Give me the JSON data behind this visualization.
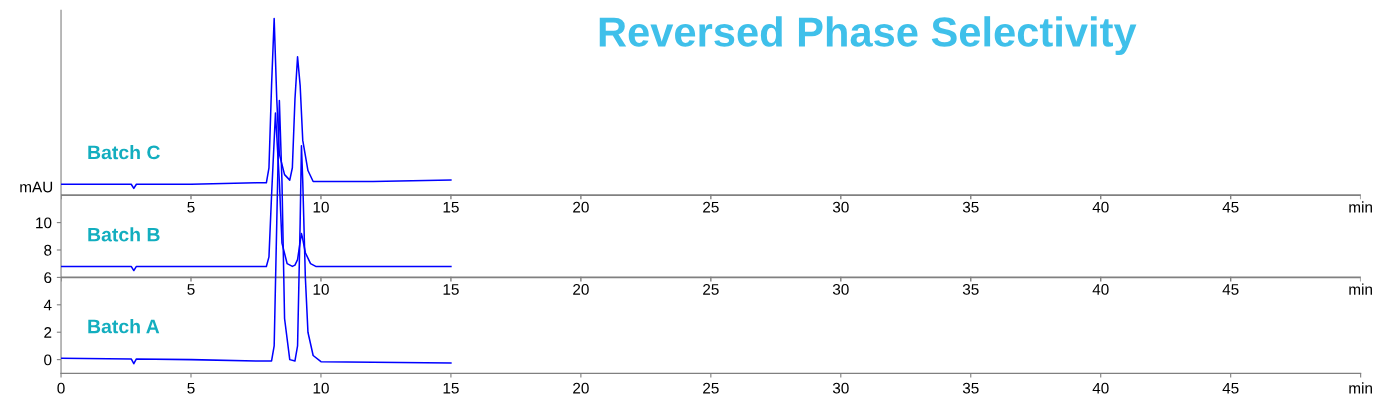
{
  "chart_data": {
    "type": "line",
    "title": "Reversed Phase Selectivity",
    "ylabel": "mAU",
    "xlim": [
      0,
      50
    ],
    "xticks": [
      0,
      5,
      10,
      15,
      20,
      25,
      30,
      35,
      40,
      45,
      {
        "value": 50,
        "label": "min"
      }
    ],
    "ylim": [
      -1,
      25.5
    ],
    "yticks": [
      0,
      2,
      4,
      6,
      8,
      10
    ],
    "grid": false,
    "legend": false,
    "marker": "none",
    "line_style": "solid",
    "annotations": [
      {
        "text": "5",
        "x": 5,
        "y": 12
      },
      {
        "text": "10",
        "x": 10,
        "y": 12
      },
      {
        "text": "15",
        "x": 15,
        "y": 12
      },
      {
        "text": "20",
        "x": 20,
        "y": 12
      },
      {
        "text": "25",
        "x": 25,
        "y": 12
      },
      {
        "text": "30",
        "x": 30,
        "y": 12
      },
      {
        "text": "35",
        "x": 35,
        "y": 12
      },
      {
        "text": "40",
        "x": 40,
        "y": 12
      },
      {
        "text": "45",
        "x": 45,
        "y": 12
      },
      {
        "text": "min",
        "x": 50,
        "y": 12
      },
      {
        "text": "5",
        "x": 5,
        "y": 6
      },
      {
        "text": "10",
        "x": 10,
        "y": 6
      },
      {
        "text": "15",
        "x": 15,
        "y": 6
      },
      {
        "text": "20",
        "x": 20,
        "y": 6
      },
      {
        "text": "25",
        "x": 25,
        "y": 6
      },
      {
        "text": "30",
        "x": 30,
        "y": 6
      },
      {
        "text": "35",
        "x": 35,
        "y": 6
      },
      {
        "text": "40",
        "x": 40,
        "y": 6
      },
      {
        "text": "45",
        "x": 45,
        "y": 6
      },
      {
        "text": "min",
        "x": 50,
        "y": 6
      }
    ],
    "ref_lines": [
      {
        "axis": "y",
        "value": 6,
        "color": "#808080"
      },
      {
        "axis": "y",
        "value": 12,
        "color": "#808080"
      }
    ],
    "series": [
      {
        "name": "Batch C",
        "color": "#0000ff",
        "x": [
          0,
          2.7,
          2.8,
          2.9,
          5,
          7.5,
          7.9,
          8.0,
          8.1,
          8.2,
          8.3,
          8.4,
          8.6,
          8.8,
          8.9,
          9.0,
          9.1,
          9.2,
          9.3,
          9.5,
          9.7,
          10,
          12,
          15
        ],
        "values": [
          12.8,
          12.8,
          12.5,
          12.8,
          12.8,
          12.9,
          12.9,
          14,
          20,
          24.9,
          19,
          15,
          13.5,
          13.1,
          14,
          19,
          22.1,
          20,
          16,
          13.8,
          13.0,
          13.0,
          13.0,
          13.1
        ]
      },
      {
        "name": "Batch B",
        "color": "#0000ff",
        "x": [
          0,
          2.7,
          2.8,
          2.9,
          5,
          7.5,
          7.9,
          8.0,
          8.1,
          8.25,
          8.4,
          8.5,
          8.7,
          8.9,
          9.0,
          9.1,
          9.2,
          9.25,
          9.3,
          9.4,
          9.6,
          9.8,
          12,
          15
        ],
        "values": [
          6.8,
          6.8,
          6.5,
          6.8,
          6.8,
          6.8,
          6.8,
          7.5,
          12,
          18,
          13,
          8.5,
          7,
          6.8,
          6.9,
          7.3,
          8.6,
          9.2,
          8.8,
          7.8,
          7,
          6.8,
          6.8,
          6.8
        ]
      },
      {
        "name": "Batch A",
        "color": "#0000ff",
        "x": [
          0,
          2.7,
          2.8,
          2.9,
          5,
          7.5,
          8.1,
          8.2,
          8.3,
          8.4,
          8.5,
          8.6,
          8.8,
          9.0,
          9.1,
          9.2,
          9.25,
          9.3,
          9.4,
          9.5,
          9.7,
          10,
          12,
          15
        ],
        "values": [
          0.1,
          0.05,
          -0.3,
          0.05,
          0,
          -0.1,
          -0.1,
          1,
          10,
          18.9,
          13,
          3,
          0,
          -0.1,
          1,
          10,
          15.6,
          13,
          6,
          2,
          0.3,
          -0.15,
          -0.2,
          -0.25
        ]
      }
    ]
  }
}
